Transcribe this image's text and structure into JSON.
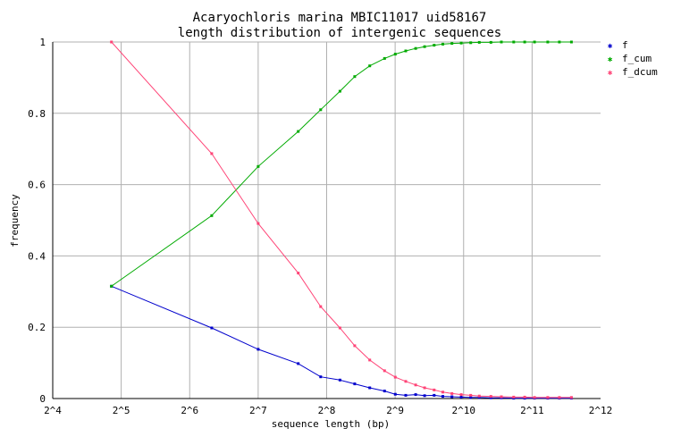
{
  "chart_data": {
    "type": "line",
    "title": "Acaryochloris marina MBIC11017 uid58167",
    "subtitle": "length distribution of intergenic sequences",
    "xlabel": "sequence length (bp)",
    "ylabel": "frequency",
    "x_scale": "log2",
    "xlim": [
      16,
      4096
    ],
    "ylim": [
      0,
      1
    ],
    "grid": true,
    "legend_position": "right",
    "x_ticks": [
      {
        "value": 16,
        "label": "2^4"
      },
      {
        "value": 32,
        "label": "2^5"
      },
      {
        "value": 64,
        "label": "2^6"
      },
      {
        "value": 128,
        "label": "2^7"
      },
      {
        "value": 256,
        "label": "2^8"
      },
      {
        "value": 512,
        "label": "2^9"
      },
      {
        "value": 1024,
        "label": "2^10"
      },
      {
        "value": 2048,
        "label": "2^11"
      },
      {
        "value": 4096,
        "label": "2^12"
      }
    ],
    "y_ticks": [
      {
        "value": 0,
        "label": "0"
      },
      {
        "value": 0.2,
        "label": "0.2"
      },
      {
        "value": 0.4,
        "label": "0.4"
      },
      {
        "value": 0.6,
        "label": "0.6"
      },
      {
        "value": 0.8,
        "label": "0.8"
      },
      {
        "value": 1,
        "label": "1"
      }
    ],
    "series": [
      {
        "name": "f",
        "color": "#0000cc",
        "points": [
          [
            29,
            0.315
          ],
          [
            80,
            0.198
          ],
          [
            128,
            0.138
          ],
          [
            192,
            0.098
          ],
          [
            241,
            0.061
          ],
          [
            293,
            0.052
          ],
          [
            340,
            0.041
          ],
          [
            396,
            0.03
          ],
          [
            460,
            0.021
          ],
          [
            513,
            0.012
          ],
          [
            570,
            0.009
          ],
          [
            630,
            0.011
          ],
          [
            690,
            0.008
          ],
          [
            760,
            0.009
          ],
          [
            830,
            0.006
          ],
          [
            910,
            0.005
          ],
          [
            1000,
            0.004
          ],
          [
            1100,
            0.003
          ],
          [
            1200,
            0.003
          ],
          [
            1350,
            0.002
          ],
          [
            1500,
            0.002
          ],
          [
            1700,
            0.001
          ],
          [
            1900,
            0.001
          ],
          [
            2100,
            0.001
          ],
          [
            2400,
            0.001
          ],
          [
            2700,
            0.001
          ],
          [
            3050,
            0.001
          ]
        ]
      },
      {
        "name": "f_cum",
        "color": "#00aa00",
        "points": [
          [
            29,
            0.315
          ],
          [
            80,
            0.513
          ],
          [
            128,
            0.651
          ],
          [
            192,
            0.749
          ],
          [
            241,
            0.81
          ],
          [
            293,
            0.862
          ],
          [
            340,
            0.903
          ],
          [
            396,
            0.933
          ],
          [
            460,
            0.954
          ],
          [
            513,
            0.966
          ],
          [
            570,
            0.975
          ],
          [
            630,
            0.982
          ],
          [
            690,
            0.987
          ],
          [
            760,
            0.991
          ],
          [
            830,
            0.994
          ],
          [
            910,
            0.996
          ],
          [
            1000,
            0.997
          ],
          [
            1100,
            0.998
          ],
          [
            1200,
            0.999
          ],
          [
            1350,
            0.999
          ],
          [
            1500,
            1.0
          ],
          [
            1700,
            1.0
          ],
          [
            1900,
            1.0
          ],
          [
            2100,
            1.0
          ],
          [
            2400,
            1.0
          ],
          [
            2700,
            1.0
          ],
          [
            3050,
            1.0
          ]
        ]
      },
      {
        "name": "f_dcum",
        "color": "#ff4477",
        "points": [
          [
            29,
            1.0
          ],
          [
            80,
            0.687
          ],
          [
            128,
            0.491
          ],
          [
            192,
            0.352
          ],
          [
            241,
            0.258
          ],
          [
            293,
            0.198
          ],
          [
            340,
            0.148
          ],
          [
            396,
            0.108
          ],
          [
            460,
            0.078
          ],
          [
            513,
            0.06
          ],
          [
            570,
            0.048
          ],
          [
            630,
            0.038
          ],
          [
            690,
            0.03
          ],
          [
            760,
            0.024
          ],
          [
            830,
            0.018
          ],
          [
            910,
            0.014
          ],
          [
            1000,
            0.011
          ],
          [
            1100,
            0.009
          ],
          [
            1200,
            0.007
          ],
          [
            1350,
            0.006
          ],
          [
            1500,
            0.005
          ],
          [
            1700,
            0.004
          ],
          [
            1900,
            0.004
          ],
          [
            2100,
            0.003
          ],
          [
            2400,
            0.003
          ],
          [
            2700,
            0.003
          ],
          [
            3050,
            0.003
          ]
        ]
      }
    ]
  }
}
